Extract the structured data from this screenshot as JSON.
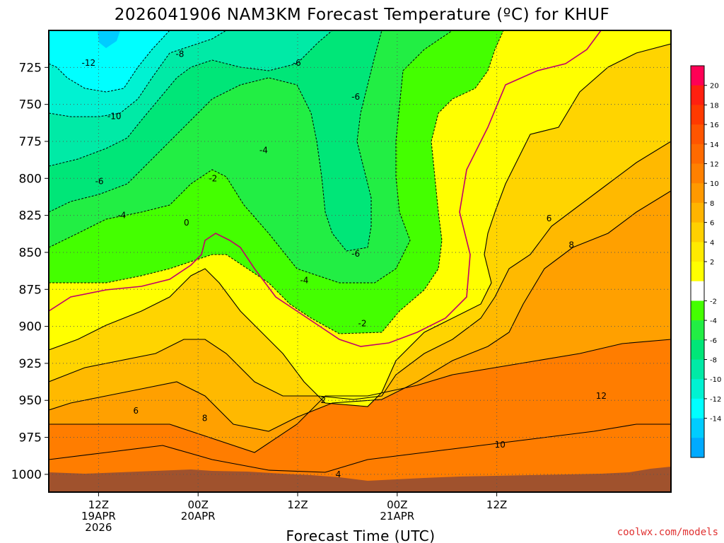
{
  "chart_data": {
    "type": "contour",
    "title": "2026041906 NAM3KM Forecast Temperature (ºC) for KHUF",
    "xlabel": "Forecast Time (UTC)",
    "ylabel": "",
    "credit": "coolwx.com/models",
    "y_axis": {
      "label": "",
      "inverted": true,
      "range": [
        1012,
        700
      ],
      "ticks": [
        "725",
        "750",
        "775",
        "800",
        "825",
        "850",
        "875",
        "900",
        "925",
        "950",
        "975",
        "1000"
      ]
    },
    "x_axis": {
      "range_hours": [
        6,
        81
      ],
      "ticks": [
        {
          "line1": "12Z",
          "line2": "19APR",
          "line3": "2026"
        },
        {
          "line1": "00Z",
          "line2": "20APR",
          "line3": ""
        },
        {
          "line1": "12Z",
          "line2": "",
          "line3": ""
        },
        {
          "line1": "00Z",
          "line2": "21APR",
          "line3": ""
        },
        {
          "line1": "12Z",
          "line2": "",
          "line3": ""
        }
      ]
    },
    "grid": true,
    "colorbar": {
      "placement": "right",
      "labels": [
        "20",
        "18",
        "16",
        "14",
        "12",
        "10",
        "8",
        "6",
        "4",
        "2",
        "-2",
        "-4",
        "-6",
        "-8",
        "-10",
        "-12",
        "-14"
      ],
      "colors": [
        "#ff0055",
        "#ff2010",
        "#ff3a00",
        "#ff5500",
        "#ff6a00",
        "#ff8000",
        "#ff9900",
        "#ffb400",
        "#ffd000",
        "#ffea00",
        "#ffff00",
        "#ffffff",
        "#44ff00",
        "#22ee44",
        "#00e678",
        "#00eaa6",
        "#00f2d2",
        "#00ffff",
        "#00ccff",
        "#00aaff"
      ]
    },
    "contour_labels": [
      {
        "text": "-12",
        "x": 10.8,
        "p": 722
      },
      {
        "text": "-8",
        "x": 21.8,
        "p": 716
      },
      {
        "text": "-6",
        "x": 35.9,
        "p": 722
      },
      {
        "text": "-6",
        "x": 43.0,
        "p": 745
      },
      {
        "text": "-10",
        "x": 13.9,
        "p": 758
      },
      {
        "text": "-4",
        "x": 31.9,
        "p": 781
      },
      {
        "text": "-6",
        "x": 12.1,
        "p": 802
      },
      {
        "text": "-2",
        "x": 25.8,
        "p": 800
      },
      {
        "text": "-4",
        "x": 14.8,
        "p": 825
      },
      {
        "text": "0",
        "x": 22.6,
        "p": 830
      },
      {
        "text": "-6",
        "x": 43.0,
        "p": 851
      },
      {
        "text": "-4",
        "x": 36.8,
        "p": 869
      },
      {
        "text": "-2",
        "x": 43.8,
        "p": 898
      },
      {
        "text": "2",
        "x": 39.1,
        "p": 950
      },
      {
        "text": "6",
        "x": 16.5,
        "p": 957
      },
      {
        "text": "8",
        "x": 24.8,
        "p": 962
      },
      {
        "text": "4",
        "x": 40.9,
        "p": 1000
      },
      {
        "text": "6",
        "x": 66.3,
        "p": 827
      },
      {
        "text": "8",
        "x": 69.0,
        "p": 845
      },
      {
        "text": "12",
        "x": 72.6,
        "p": 947
      },
      {
        "text": "10",
        "x": 60.4,
        "p": 980
      }
    ]
  }
}
